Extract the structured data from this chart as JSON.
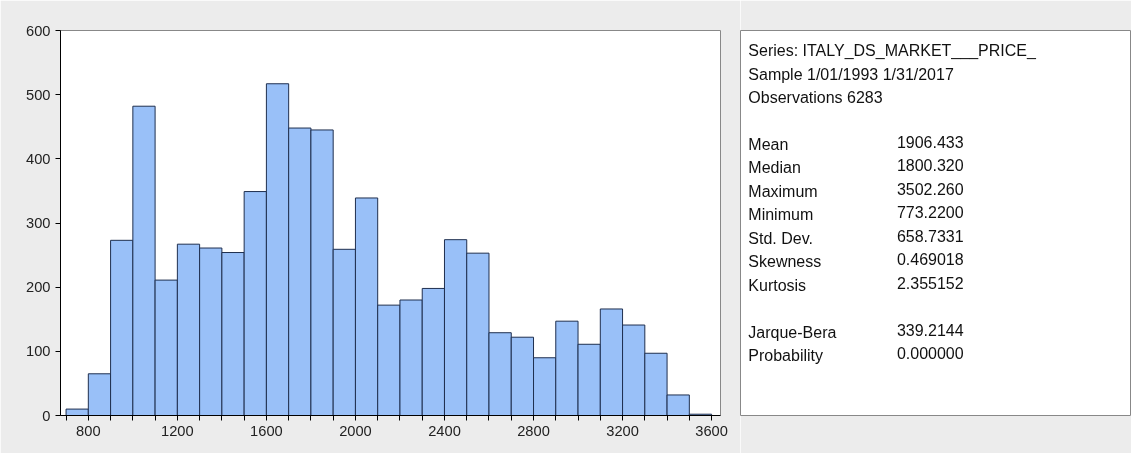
{
  "chart_data": {
    "type": "histogram",
    "bins": [
      700,
      800,
      900,
      1000,
      1100,
      1200,
      1300,
      1400,
      1500,
      1600,
      1700,
      1800,
      1900,
      2000,
      2100,
      2200,
      2300,
      2400,
      2500,
      2600,
      2700,
      2800,
      2900,
      3000,
      3100,
      3200,
      3300,
      3400,
      3500,
      3600
    ],
    "values": [
      10,
      65,
      273,
      482,
      211,
      267,
      261,
      254,
      349,
      517,
      448,
      445,
      259,
      339,
      172,
      180,
      198,
      274,
      253,
      129,
      122,
      90,
      147,
      111,
      166,
      141,
      97,
      32,
      2
    ],
    "color": "#99c0f8",
    "xlim": [
      675,
      3640
    ],
    "xticks": [
      {
        "value": 700,
        "label": null
      },
      800,
      {
        "value": 900,
        "label": null
      },
      {
        "value": 1000,
        "label": null
      },
      {
        "value": 1100,
        "label": null
      },
      1200,
      {
        "value": 1300,
        "label": null
      },
      {
        "value": 1400,
        "label": null
      },
      {
        "value": 1500,
        "label": null
      },
      1600,
      {
        "value": 1700,
        "label": null
      },
      {
        "value": 1800,
        "label": null
      },
      {
        "value": 1900,
        "label": null
      },
      2000,
      {
        "value": 2100,
        "label": null
      },
      {
        "value": 2200,
        "label": null
      },
      {
        "value": 2300,
        "label": null
      },
      2400,
      {
        "value": 2500,
        "label": null
      },
      {
        "value": 2600,
        "label": null
      },
      {
        "value": 2700,
        "label": null
      },
      2800,
      {
        "value": 2900,
        "label": null
      },
      {
        "value": 3000,
        "label": null
      },
      {
        "value": 3100,
        "label": null
      },
      3200,
      {
        "value": 3300,
        "label": null
      },
      {
        "value": 3400,
        "label": null
      },
      {
        "value": 3500,
        "label": null
      },
      3600
    ],
    "ylim": [
      0,
      600
    ],
    "yticks": [
      0,
      100,
      200,
      300,
      400,
      500,
      600
    ],
    "grid": false,
    "annotations": [
      "Series: ITALY_DS_MARKET___PRICE_",
      "Sample 1/01/1993 1/31/2017",
      "Observations 6283",
      "Mean 1906.433",
      "Median 1800.320",
      "Maximum 3502.260",
      "Minimum 773.2200",
      "Std. Dev. 658.7331",
      "Skewness 0.469018",
      "Kurtosis 2.355152",
      "Jarque-Bera 339.2144",
      "Probability 0.000000"
    ]
  }
}
